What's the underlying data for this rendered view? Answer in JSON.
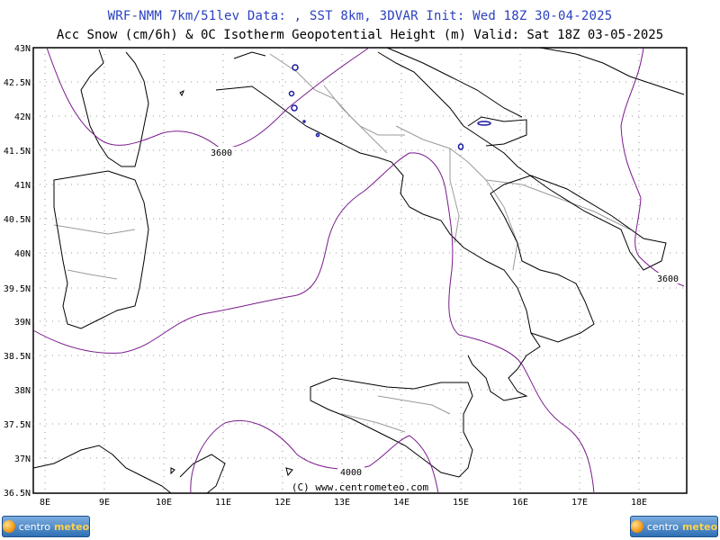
{
  "header": {
    "line1": "WRF-NMM 7km/51lev  Data: , SST 8km, 3DVAR  Init: Wed 18Z 30-04-2025",
    "line2": "Acc Snow (cm/6h) & 0C Isotherm Geopotential Height (m)  Valid: Sat 18Z 03-05-2025"
  },
  "lat_labels": [
    "43N",
    "42.5N",
    "42N",
    "41.5N",
    "41N",
    "40.5N",
    "40N",
    "39.5N",
    "39N",
    "38.5N",
    "38N",
    "37.5N",
    "37N",
    "36.5N"
  ],
  "lon_labels": [
    "8E",
    "9E",
    "10E",
    "11E",
    "12E",
    "13E",
    "14E",
    "15E",
    "16E",
    "17E",
    "18E"
  ],
  "contour_labels": [
    "3600",
    "3600",
    "4000"
  ],
  "copyright": "(C) www.centrometeo.com",
  "logo": {
    "part1": "centro",
    "part2": "meteo"
  },
  "colors": {
    "title": "#2a3fc0",
    "contour": "#7a1a8c",
    "coast": "#000000",
    "borders": "#9a9a9a",
    "snow": "#1a1aa0"
  }
}
